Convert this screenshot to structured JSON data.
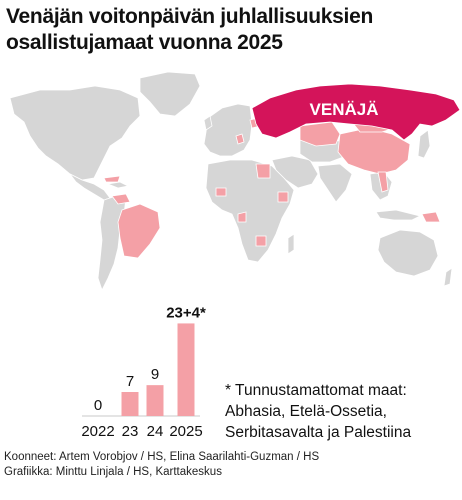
{
  "title_lines": [
    "Venäjän voitonpäivän juhlallisuuksien",
    "osallistujamaat vuonna 2025"
  ],
  "map": {
    "russia_label": "VENÄJÄ",
    "colors": {
      "russia": "#d4145a",
      "participant": "#f4a0a6",
      "other": "#d6d6d6",
      "border": "#ffffff"
    }
  },
  "chart_data": {
    "type": "bar",
    "categories": [
      "2022",
      "23",
      "24",
      "2025"
    ],
    "values": [
      0,
      7,
      9,
      27
    ],
    "data_labels": [
      "0",
      "7",
      "9",
      "23+4*"
    ],
    "ylim": [
      0,
      28
    ],
    "bar_color": "#f4a0a6",
    "xlabel": "",
    "ylabel": ""
  },
  "footnote_lines": [
    "* Tunnustamattomat maat:",
    "Abhasia, Etelä-Ossetia,",
    "Serbitasavalta ja Palestiina"
  ],
  "credits": [
    "Koonneet: Artem Vorobjov / HS, Elina Saarilahti-Guzman / HS",
    "Grafiikka: Minttu Linjala / HS, Karttakeskus"
  ]
}
